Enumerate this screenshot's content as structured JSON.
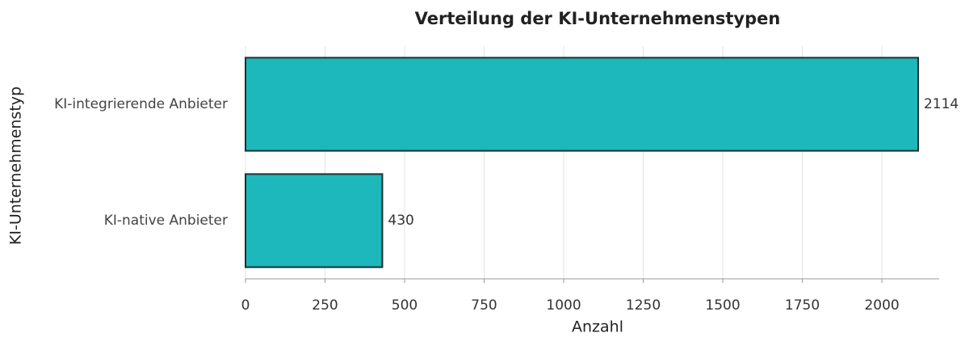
{
  "chart_data": {
    "type": "barh",
    "title": "Verteilung der KI-Unternehmenstypen",
    "xlabel": "Anzahl",
    "ylabel": "KI-Unternehmenstyp",
    "categories": [
      "KI-integrierende Anbieter",
      "KI-native Anbieter"
    ],
    "values": [
      2114,
      430
    ],
    "color": "#1cb8bb",
    "xlim": [
      0,
      2180
    ],
    "xticks": [
      0,
      250,
      500,
      750,
      1000,
      1250,
      1500,
      1750,
      2000
    ],
    "grid": true
  }
}
